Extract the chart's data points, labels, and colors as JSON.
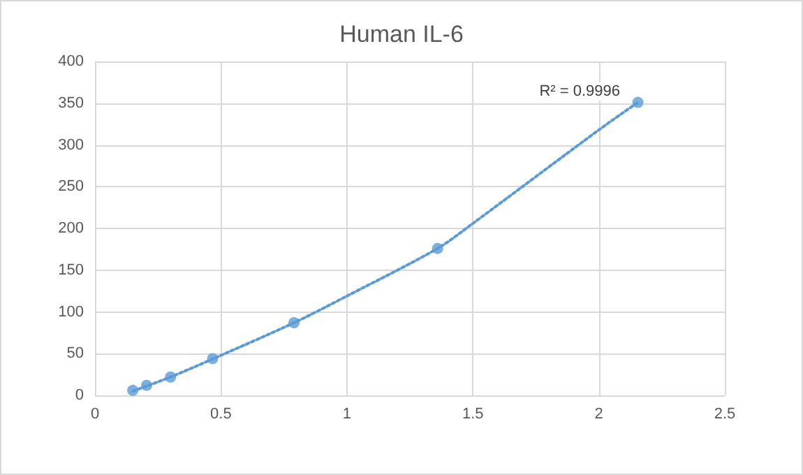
{
  "chart_data": {
    "type": "scatter",
    "title": "Human IL-6",
    "series": [
      {
        "color": "#5b9bd5",
        "x": [
          0.15,
          0.205,
          0.3,
          0.467,
          0.79,
          1.36,
          2.155
        ],
        "values": [
          6,
          12,
          22,
          44,
          87,
          176,
          351
        ],
        "marker": "circle"
      },
      {
        "type": "line",
        "color": "#5b9bd5",
        "line_style": "dotted",
        "x": [
          0.15,
          0.3,
          0.47,
          0.79,
          1.0,
          1.36,
          1.5,
          2.0,
          2.155
        ],
        "values": [
          5,
          22,
          44,
          87,
          119,
          176,
          206,
          318,
          351
        ]
      }
    ],
    "annotations": [
      "R² = 0.9996"
    ],
    "xlim": [
      0,
      2.5
    ],
    "xticks": [
      0,
      0.5,
      1,
      1.5,
      2,
      2.5
    ],
    "ylim": [
      0,
      400
    ],
    "yticks": [
      0,
      50,
      100,
      150,
      200,
      250,
      300,
      350,
      400
    ],
    "grid": true
  }
}
